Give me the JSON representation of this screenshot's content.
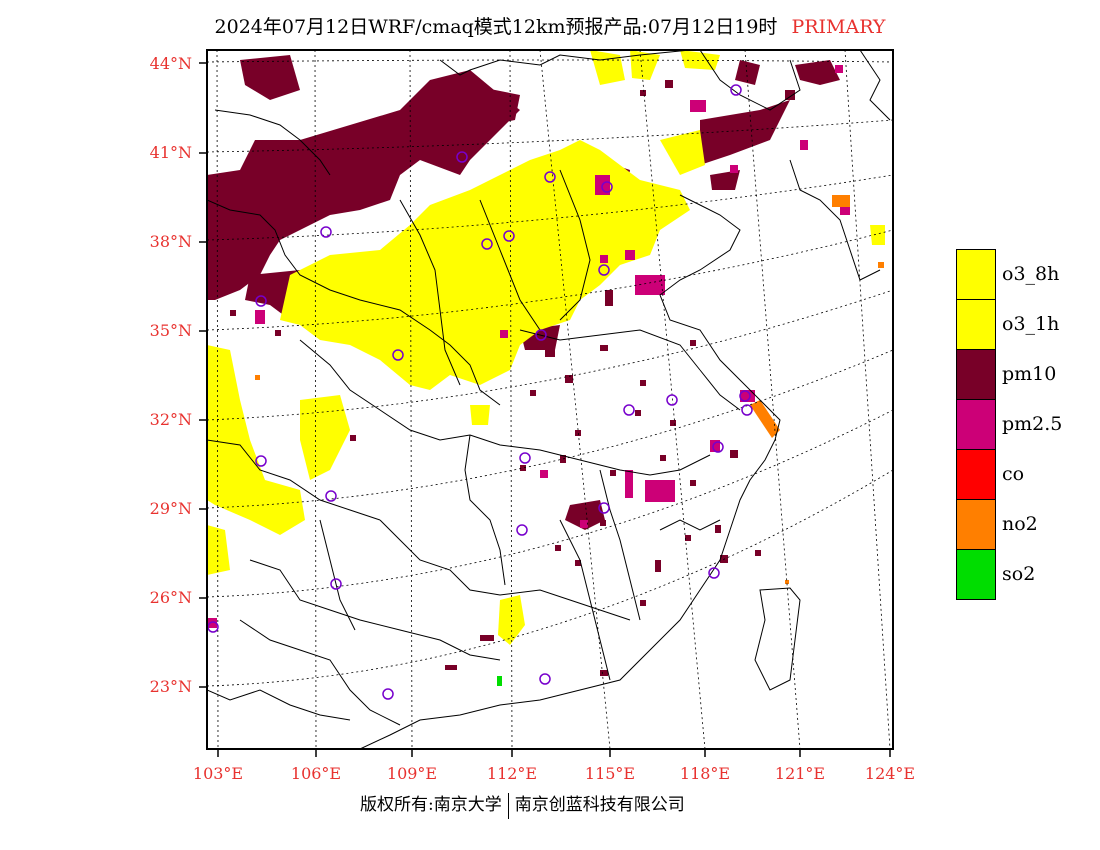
{
  "header": {
    "title": "2024年07月12日WRF/cmaq模式12km预报产品:07月12日19时",
    "tag": "PRIMARY"
  },
  "map": {
    "lat_labels": [
      "44°N",
      "41°N",
      "38°N",
      "35°N",
      "32°N",
      "29°N",
      "26°N",
      "23°N"
    ],
    "lon_labels": [
      "103°E",
      "106°E",
      "109°E",
      "112°E",
      "115°E",
      "118°E",
      "121°E",
      "124°E"
    ],
    "extent": {
      "lon_min": 102.75,
      "lon_max": 124.0,
      "lat_min": 21.0,
      "lat_max": 44.5
    }
  },
  "legend": {
    "items": [
      {
        "label": "o3_8h",
        "color": "#ffff00"
      },
      {
        "label": "o3_1h",
        "color": "#ffff00"
      },
      {
        "label": "pm10",
        "color": "#780028"
      },
      {
        "label": "pm2.5",
        "color": "#cc0077"
      },
      {
        "label": "co",
        "color": "#ff0000"
      },
      {
        "label": "no2",
        "color": "#ff7f00"
      },
      {
        "label": "so2",
        "color": "#00dd00"
      }
    ]
  },
  "footer": {
    "left": "版权所有:南京大学",
    "right": "南京创蓝科技有限公司"
  }
}
